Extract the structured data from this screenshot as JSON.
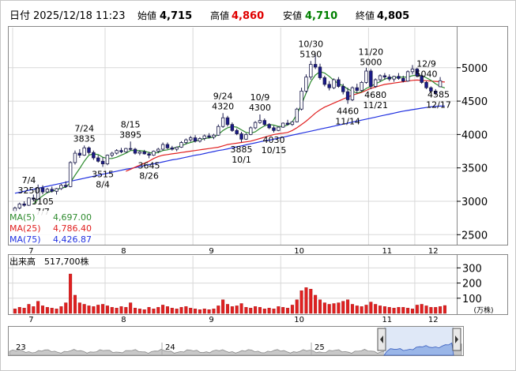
{
  "header": {
    "date_label": "日付",
    "date_value": "2025/12/18 11:23",
    "open_label": "始値",
    "open_value": "4,715",
    "high_label": "高値",
    "high_value": "4,860",
    "low_label": "安値",
    "low_value": "4,710",
    "close_label": "終値",
    "close_value": "4,805"
  },
  "legend": {
    "ma5_label": "MA(5)",
    "ma5_value": "4,697.00",
    "ma25_label": "MA(25)",
    "ma25_value": "4,786.40",
    "ma75_label": "MA(75)",
    "ma75_value": "4,426.87"
  },
  "volume": {
    "title": "出来高",
    "value": "517,700株",
    "unit": "(万株)",
    "ticks": [
      "300",
      "200",
      "100"
    ]
  },
  "navigator": {
    "year_labels": [
      "23",
      "24",
      "25"
    ]
  },
  "colors": {
    "up": "#ffffff",
    "down": "#1a1a8c",
    "ma5": "#2e8b2e",
    "ma25": "#e02020",
    "ma75": "#2030e0",
    "volume_bar": "#e02020",
    "open_value": "#000000",
    "high_value": "#e00000",
    "low_value": "#008000",
    "close_value": "#000000",
    "navigator_fill": "#9ab6e8"
  },
  "chart_data": {
    "type": "candlestick",
    "title": "",
    "y_ticks": [
      "5000",
      "4500",
      "4000",
      "3500",
      "3000",
      "2500"
    ],
    "ylim": [
      2350,
      5600
    ],
    "x_month_labels": [
      "7",
      "8",
      "9",
      "10",
      "11",
      "12"
    ],
    "annotations": [
      {
        "date": "7/4",
        "value": "3250",
        "position": "above"
      },
      {
        "date": "7/7",
        "value": "3105",
        "position": "below"
      },
      {
        "date": "7/24",
        "value": "3835",
        "position": "above"
      },
      {
        "date": "8/4",
        "value": "3515",
        "position": "below"
      },
      {
        "date": "8/15",
        "value": "3895",
        "position": "above"
      },
      {
        "date": "8/26",
        "value": "3645",
        "position": "below"
      },
      {
        "date": "9/24",
        "value": "4320",
        "position": "above"
      },
      {
        "date": "10/1",
        "value": "3885",
        "position": "below"
      },
      {
        "date": "10/9",
        "value": "4300",
        "position": "above"
      },
      {
        "date": "10/15",
        "value": "4030",
        "position": "below"
      },
      {
        "date": "10/30",
        "value": "5190",
        "position": "above"
      },
      {
        "date": "11/14",
        "value": "4460",
        "position": "below"
      },
      {
        "date": "11/20",
        "value": "5000",
        "position": "above"
      },
      {
        "date": "11/21",
        "value": "4680",
        "position": "below"
      },
      {
        "date": "12/9",
        "value": "5040",
        "position": "above"
      },
      {
        "date": "12/17",
        "value": "4585",
        "position": "below"
      }
    ],
    "candles": [
      {
        "o": 2850,
        "h": 2920,
        "l": 2820,
        "c": 2900
      },
      {
        "o": 2900,
        "h": 2980,
        "l": 2880,
        "c": 2960
      },
      {
        "o": 2960,
        "h": 3000,
        "l": 2920,
        "c": 2940
      },
      {
        "o": 2940,
        "h": 3060,
        "l": 2930,
        "c": 3050
      },
      {
        "o": 3050,
        "h": 3100,
        "l": 3000,
        "c": 3030
      },
      {
        "o": 3030,
        "h": 3250,
        "l": 3020,
        "c": 3200
      },
      {
        "o": 3200,
        "h": 3240,
        "l": 3105,
        "c": 3140
      },
      {
        "o": 3140,
        "h": 3200,
        "l": 3120,
        "c": 3180
      },
      {
        "o": 3180,
        "h": 3220,
        "l": 3130,
        "c": 3150
      },
      {
        "o": 3150,
        "h": 3200,
        "l": 3100,
        "c": 3190
      },
      {
        "o": 3190,
        "h": 3260,
        "l": 3170,
        "c": 3240
      },
      {
        "o": 3240,
        "h": 3300,
        "l": 3200,
        "c": 3220
      },
      {
        "o": 3220,
        "h": 3600,
        "l": 3210,
        "c": 3580
      },
      {
        "o": 3580,
        "h": 3760,
        "l": 3550,
        "c": 3720
      },
      {
        "o": 3720,
        "h": 3780,
        "l": 3650,
        "c": 3690
      },
      {
        "o": 3690,
        "h": 3835,
        "l": 3680,
        "c": 3800
      },
      {
        "o": 3800,
        "h": 3820,
        "l": 3700,
        "c": 3730
      },
      {
        "o": 3730,
        "h": 3760,
        "l": 3620,
        "c": 3650
      },
      {
        "o": 3650,
        "h": 3690,
        "l": 3580,
        "c": 3600
      },
      {
        "o": 3600,
        "h": 3660,
        "l": 3515,
        "c": 3560
      },
      {
        "o": 3560,
        "h": 3700,
        "l": 3540,
        "c": 3690
      },
      {
        "o": 3690,
        "h": 3740,
        "l": 3660,
        "c": 3720
      },
      {
        "o": 3720,
        "h": 3780,
        "l": 3700,
        "c": 3760
      },
      {
        "o": 3760,
        "h": 3800,
        "l": 3720,
        "c": 3740
      },
      {
        "o": 3740,
        "h": 3800,
        "l": 3730,
        "c": 3790
      },
      {
        "o": 3790,
        "h": 3895,
        "l": 3760,
        "c": 3780
      },
      {
        "o": 3780,
        "h": 3800,
        "l": 3700,
        "c": 3720
      },
      {
        "o": 3720,
        "h": 3760,
        "l": 3690,
        "c": 3740
      },
      {
        "o": 3740,
        "h": 3770,
        "l": 3700,
        "c": 3710
      },
      {
        "o": 3710,
        "h": 3740,
        "l": 3645,
        "c": 3690
      },
      {
        "o": 3690,
        "h": 3760,
        "l": 3680,
        "c": 3750
      },
      {
        "o": 3750,
        "h": 3800,
        "l": 3720,
        "c": 3780
      },
      {
        "o": 3780,
        "h": 3880,
        "l": 3760,
        "c": 3850
      },
      {
        "o": 3850,
        "h": 3880,
        "l": 3780,
        "c": 3800
      },
      {
        "o": 3800,
        "h": 3830,
        "l": 3760,
        "c": 3780
      },
      {
        "o": 3780,
        "h": 3820,
        "l": 3750,
        "c": 3810
      },
      {
        "o": 3810,
        "h": 3900,
        "l": 3800,
        "c": 3880
      },
      {
        "o": 3880,
        "h": 3940,
        "l": 3850,
        "c": 3920
      },
      {
        "o": 3920,
        "h": 3980,
        "l": 3890,
        "c": 3950
      },
      {
        "o": 3950,
        "h": 3990,
        "l": 3880,
        "c": 3900
      },
      {
        "o": 3900,
        "h": 3960,
        "l": 3880,
        "c": 3940
      },
      {
        "o": 3940,
        "h": 4000,
        "l": 3910,
        "c": 3980
      },
      {
        "o": 3980,
        "h": 4020,
        "l": 3940,
        "c": 3960
      },
      {
        "o": 3960,
        "h": 4010,
        "l": 3930,
        "c": 3990
      },
      {
        "o": 3990,
        "h": 4150,
        "l": 3980,
        "c": 4120
      },
      {
        "o": 4120,
        "h": 4320,
        "l": 4100,
        "c": 4250
      },
      {
        "o": 4250,
        "h": 4280,
        "l": 4120,
        "c": 4150
      },
      {
        "o": 4150,
        "h": 4180,
        "l": 4040,
        "c": 4060
      },
      {
        "o": 4060,
        "h": 4090,
        "l": 3990,
        "c": 4010
      },
      {
        "o": 4010,
        "h": 4040,
        "l": 3885,
        "c": 3930
      },
      {
        "o": 3930,
        "h": 4020,
        "l": 3920,
        "c": 4000
      },
      {
        "o": 4000,
        "h": 4120,
        "l": 3990,
        "c": 4100
      },
      {
        "o": 4100,
        "h": 4200,
        "l": 4080,
        "c": 4180
      },
      {
        "o": 4180,
        "h": 4300,
        "l": 4160,
        "c": 4210
      },
      {
        "o": 4210,
        "h": 4240,
        "l": 4130,
        "c": 4150
      },
      {
        "o": 4150,
        "h": 4170,
        "l": 4080,
        "c": 4100
      },
      {
        "o": 4100,
        "h": 4130,
        "l": 4030,
        "c": 4060
      },
      {
        "o": 4060,
        "h": 4120,
        "l": 4050,
        "c": 4110
      },
      {
        "o": 4110,
        "h": 4180,
        "l": 4100,
        "c": 4170
      },
      {
        "o": 4170,
        "h": 4220,
        "l": 4140,
        "c": 4150
      },
      {
        "o": 4150,
        "h": 4200,
        "l": 4130,
        "c": 4190
      },
      {
        "o": 4190,
        "h": 4400,
        "l": 4180,
        "c": 4380
      },
      {
        "o": 4380,
        "h": 4700,
        "l": 4360,
        "c": 4650
      },
      {
        "o": 4650,
        "h": 4900,
        "l": 4620,
        "c": 4860
      },
      {
        "o": 4860,
        "h": 5100,
        "l": 4820,
        "c": 5050
      },
      {
        "o": 5050,
        "h": 5190,
        "l": 4980,
        "c": 5010
      },
      {
        "o": 5010,
        "h": 5060,
        "l": 4820,
        "c": 4850
      },
      {
        "o": 4850,
        "h": 4880,
        "l": 4720,
        "c": 4750
      },
      {
        "o": 4750,
        "h": 4800,
        "l": 4660,
        "c": 4700
      },
      {
        "o": 4700,
        "h": 4840,
        "l": 4680,
        "c": 4820
      },
      {
        "o": 4820,
        "h": 4860,
        "l": 4700,
        "c": 4720
      },
      {
        "o": 4720,
        "h": 4760,
        "l": 4600,
        "c": 4640
      },
      {
        "o": 4640,
        "h": 4700,
        "l": 4460,
        "c": 4520
      },
      {
        "o": 4520,
        "h": 4720,
        "l": 4500,
        "c": 4700
      },
      {
        "o": 4700,
        "h": 4760,
        "l": 4620,
        "c": 4660
      },
      {
        "o": 4660,
        "h": 4800,
        "l": 4640,
        "c": 4780
      },
      {
        "o": 4780,
        "h": 5000,
        "l": 4760,
        "c": 4950
      },
      {
        "o": 4950,
        "h": 4980,
        "l": 4680,
        "c": 4720
      },
      {
        "o": 4720,
        "h": 4840,
        "l": 4700,
        "c": 4820
      },
      {
        "o": 4820,
        "h": 4900,
        "l": 4790,
        "c": 4880
      },
      {
        "o": 4880,
        "h": 4920,
        "l": 4820,
        "c": 4860
      },
      {
        "o": 4860,
        "h": 4900,
        "l": 4800,
        "c": 4830
      },
      {
        "o": 4830,
        "h": 4880,
        "l": 4790,
        "c": 4870
      },
      {
        "o": 4870,
        "h": 4920,
        "l": 4820,
        "c": 4840
      },
      {
        "o": 4840,
        "h": 4880,
        "l": 4780,
        "c": 4800
      },
      {
        "o": 4800,
        "h": 4960,
        "l": 4790,
        "c": 4940
      },
      {
        "o": 4940,
        "h": 5040,
        "l": 4900,
        "c": 4980
      },
      {
        "o": 4980,
        "h": 5000,
        "l": 4860,
        "c": 4880
      },
      {
        "o": 4880,
        "h": 4900,
        "l": 4760,
        "c": 4780
      },
      {
        "o": 4780,
        "h": 4800,
        "l": 4680,
        "c": 4700
      },
      {
        "o": 4700,
        "h": 4720,
        "l": 4620,
        "c": 4650
      },
      {
        "o": 4650,
        "h": 4680,
        "l": 4585,
        "c": 4620
      },
      {
        "o": 4715,
        "h": 4860,
        "l": 4710,
        "c": 4805
      }
    ],
    "ma5": [
      null,
      null,
      null,
      null,
      2960,
      3030,
      3080,
      3130,
      3150,
      3170,
      3200,
      3210,
      3280,
      3390,
      3490,
      3600,
      3690,
      3710,
      3700,
      3660,
      3640,
      3640,
      3660,
      3690,
      3720,
      3760,
      3760,
      3760,
      3750,
      3730,
      3720,
      3730,
      3760,
      3770,
      3790,
      3810,
      3830,
      3860,
      3880,
      3900,
      3920,
      3940,
      3950,
      3960,
      4000,
      4060,
      4100,
      4120,
      4110,
      4070,
      4030,
      4020,
      4040,
      4090,
      4130,
      4150,
      4140,
      4120,
      4120,
      4140,
      4190,
      4300,
      4450,
      4620,
      4790,
      4890,
      4940,
      4920,
      4870,
      4810,
      4760,
      4730,
      4680,
      4650,
      4620,
      4640,
      4690,
      4720,
      4760,
      4790,
      4830,
      4850,
      4850,
      4860,
      4860,
      4860,
      4880,
      4890,
      4880,
      4850,
      4810,
      4760,
      4720,
      4697
    ],
    "ma25": [
      null,
      null,
      null,
      null,
      null,
      null,
      null,
      null,
      null,
      null,
      null,
      null,
      null,
      null,
      null,
      null,
      null,
      null,
      null,
      null,
      null,
      null,
      null,
      null,
      3450,
      3480,
      3510,
      3540,
      3570,
      3600,
      3640,
      3670,
      3690,
      3700,
      3710,
      3720,
      3730,
      3740,
      3750,
      3760,
      3770,
      3780,
      3790,
      3800,
      3810,
      3830,
      3850,
      3860,
      3870,
      3880,
      3890,
      3900,
      3920,
      3940,
      3960,
      3980,
      4000,
      4010,
      4020,
      4030,
      4060,
      4100,
      4150,
      4200,
      4260,
      4320,
      4370,
      4410,
      4440,
      4470,
      4500,
      4530,
      4560,
      4590,
      4610,
      4630,
      4660,
      4690,
      4710,
      4730,
      4750,
      4760,
      4770,
      4780,
      4790,
      4800,
      4810,
      4815,
      4810,
      4805,
      4800,
      4795,
      4790,
      4786
    ],
    "ma75": [
      3120,
      3135,
      3150,
      3165,
      3180,
      3195,
      3210,
      3225,
      3240,
      3255,
      3270,
      3285,
      3300,
      3315,
      3330,
      3345,
      3360,
      3375,
      3390,
      3405,
      3420,
      3435,
      3450,
      3465,
      3480,
      3490,
      3505,
      3520,
      3535,
      3550,
      3560,
      3575,
      3590,
      3605,
      3620,
      3630,
      3645,
      3660,
      3675,
      3690,
      3700,
      3715,
      3730,
      3745,
      3760,
      3770,
      3785,
      3800,
      3815,
      3830,
      3845,
      3860,
      3875,
      3890,
      3905,
      3915,
      3930,
      3945,
      3960,
      3975,
      3990,
      4005,
      4020,
      4035,
      4050,
      4065,
      4080,
      4095,
      4110,
      4125,
      4140,
      4155,
      4170,
      4185,
      4200,
      4215,
      4230,
      4245,
      4260,
      4275,
      4290,
      4305,
      4320,
      4335,
      4350,
      4360,
      4372,
      4383,
      4394,
      4404,
      4413,
      4420,
      4425,
      4427
    ],
    "volume_values_man": [
      30,
      40,
      35,
      60,
      45,
      80,
      50,
      40,
      35,
      30,
      45,
      70,
      260,
      120,
      70,
      60,
      50,
      45,
      55,
      60,
      50,
      40,
      35,
      45,
      40,
      70,
      35,
      30,
      25,
      40,
      30,
      40,
      55,
      45,
      35,
      30,
      40,
      45,
      35,
      30,
      25,
      30,
      25,
      30,
      50,
      90,
      60,
      45,
      50,
      65,
      40,
      35,
      45,
      40,
      30,
      35,
      30,
      45,
      40,
      35,
      55,
      90,
      150,
      170,
      160,
      120,
      90,
      70,
      60,
      65,
      70,
      80,
      90,
      60,
      50,
      45,
      55,
      75,
      60,
      50,
      45,
      40,
      35,
      40,
      40,
      35,
      30,
      55,
      60,
      50,
      40,
      40,
      45,
      52
    ],
    "volume_ticks": [
      300,
      200,
      100
    ]
  }
}
